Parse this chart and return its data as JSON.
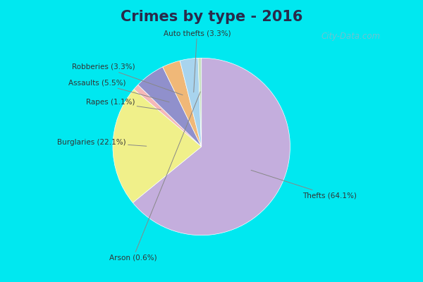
{
  "title": "Crimes by type - 2016",
  "labels": [
    "Thefts",
    "Burglaries",
    "Rapes",
    "Assaults",
    "Robberies",
    "Auto thefts",
    "Arson"
  ],
  "values": [
    64.1,
    22.1,
    1.1,
    5.5,
    3.3,
    3.3,
    0.6
  ],
  "colors": [
    "#c4aedd",
    "#f0f08a",
    "#f5b8b8",
    "#9090cc",
    "#f0b878",
    "#a8d4ee",
    "#c8e0c0"
  ],
  "label_texts": [
    "Thefts (64.1%)",
    "Burglaries (22.1%)",
    "Rapes (1.1%)",
    "Assaults (5.5%)",
    "Robberies (3.3%)",
    "Auto thefts (3.3%)",
    "Arson (0.6%)"
  ],
  "background_top": "#00e8f0",
  "background_main_top": "#d0ecd8",
  "background_main_bottom": "#e8f4ec",
  "title_fontsize": 15,
  "watermark": "City-Data.com"
}
